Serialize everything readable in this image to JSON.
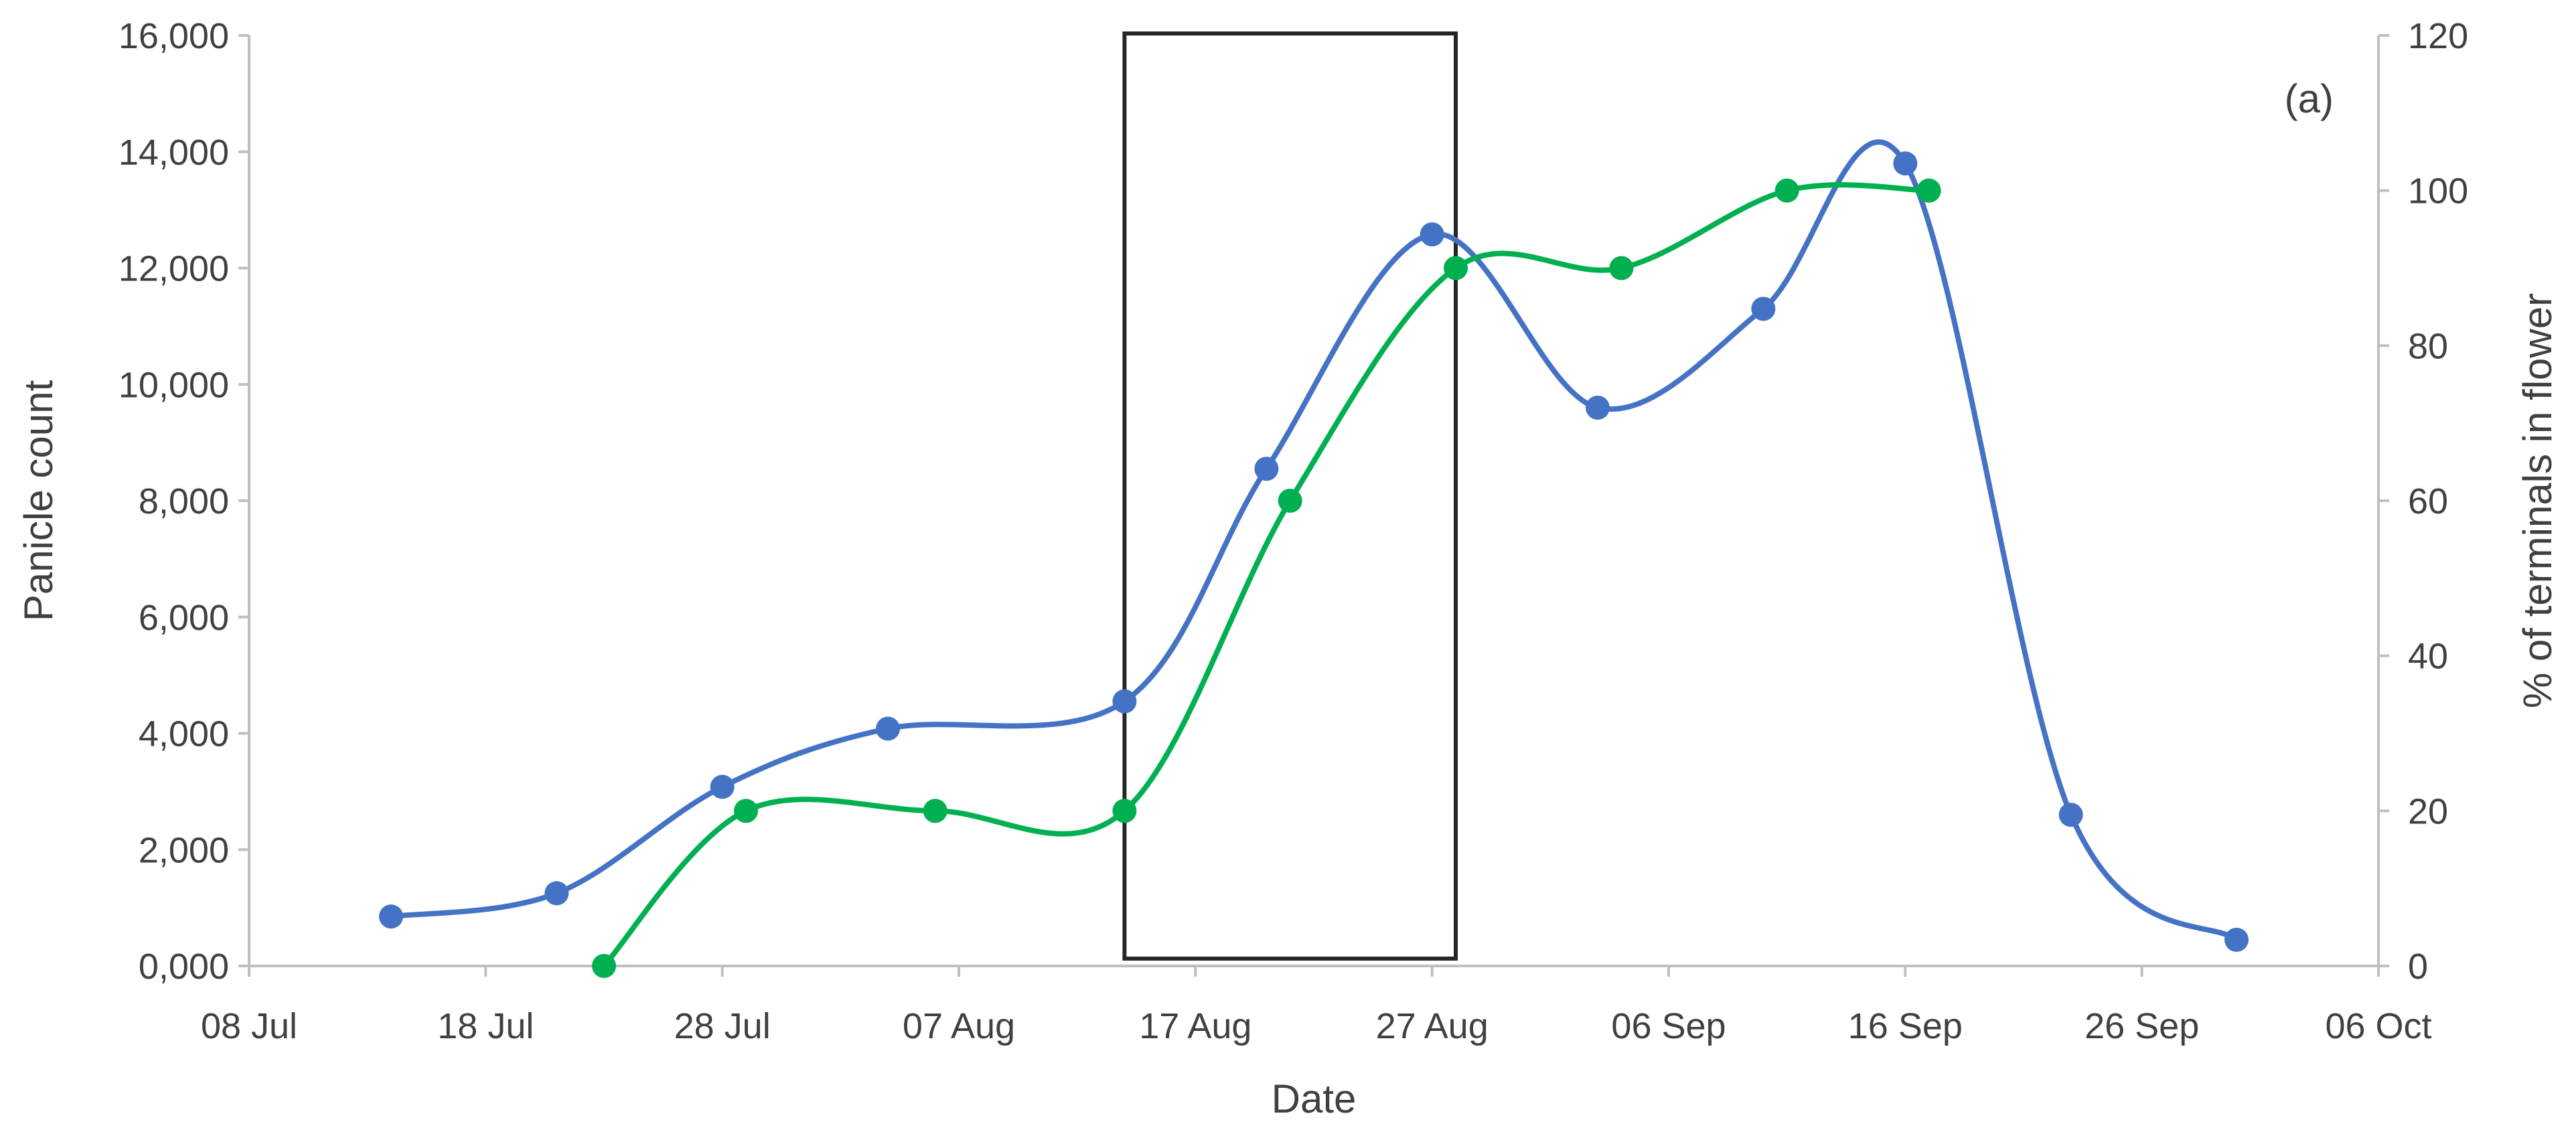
{
  "chart_data": {
    "type": "line",
    "panel_label": "(a)",
    "xlabel": "Date",
    "ylabel_left": "Panicle count",
    "ylabel_right": "% of terminals in flower",
    "x_ticks": [
      "08 Jul",
      "18 Jul",
      "28 Jul",
      "07 Aug",
      "17 Aug",
      "27 Aug",
      "06 Sep",
      "16 Sep",
      "26 Sep",
      "06 Oct"
    ],
    "y_left_ticks": [
      "0,000",
      "2,000",
      "4,000",
      "6,000",
      "8,000",
      "10,000",
      "12,000",
      "14,000",
      "16,000"
    ],
    "y_right_ticks": [
      "0",
      "20",
      "40",
      "60",
      "80",
      "100",
      "120"
    ],
    "xlim": [
      "08 Jul",
      "06 Oct"
    ],
    "ylim_left": [
      0,
      16000
    ],
    "ylim_right": [
      0,
      120
    ],
    "grid": false,
    "highlight_window": {
      "start": "14 Aug",
      "end": "28 Aug"
    },
    "series": [
      {
        "axis": "left",
        "color": "#4472c4",
        "points": [
          {
            "x": "14 Jul",
            "y": 850
          },
          {
            "x": "21 Jul",
            "y": 1250
          },
          {
            "x": "28 Jul",
            "y": 3080
          },
          {
            "x": "04 Aug",
            "y": 4080
          },
          {
            "x": "14 Aug",
            "y": 4550
          },
          {
            "x": "20 Aug",
            "y": 8550
          },
          {
            "x": "27 Aug",
            "y": 12580
          },
          {
            "x": "03 Sep",
            "y": 9600
          },
          {
            "x": "10 Sep",
            "y": 11300
          },
          {
            "x": "16 Sep",
            "y": 13800
          },
          {
            "x": "23 Sep",
            "y": 2600
          },
          {
            "x": "30 Sep",
            "y": 450
          }
        ]
      },
      {
        "axis": "right",
        "color": "#00b050",
        "points": [
          {
            "x": "23 Jul",
            "y": 0
          },
          {
            "x": "29 Jul",
            "y": 20
          },
          {
            "x": "06 Aug",
            "y": 20
          },
          {
            "x": "14 Aug",
            "y": 20
          },
          {
            "x": "21 Aug",
            "y": 60
          },
          {
            "x": "28 Aug",
            "y": 90
          },
          {
            "x": "04 Sep",
            "y": 90
          },
          {
            "x": "11 Sep",
            "y": 100
          },
          {
            "x": "17 Sep",
            "y": 100
          }
        ]
      }
    ]
  }
}
